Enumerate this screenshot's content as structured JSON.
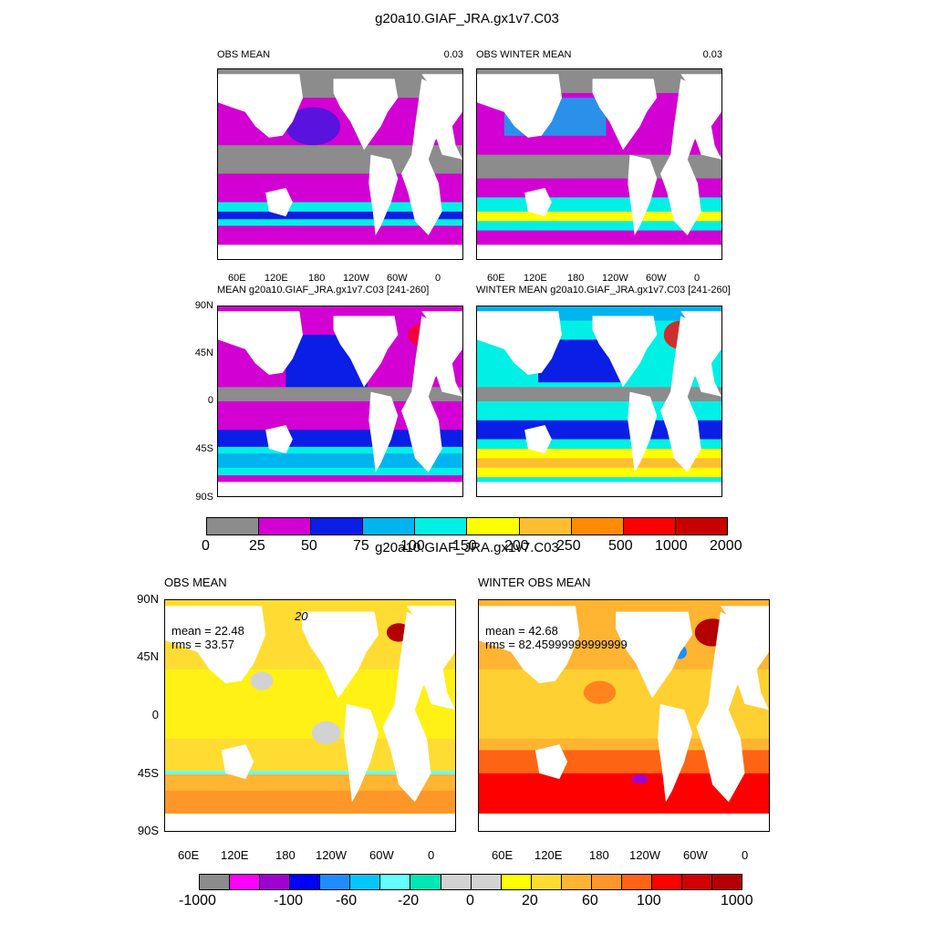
{
  "figure1": {
    "title": "g20a10.GIAF_JRA.gx1v7.C03",
    "panels": [
      {
        "left_title": "OBS MEAN",
        "right_title": "0.03"
      },
      {
        "left_title": "OBS WINTER MEAN",
        "right_title": "0.03"
      },
      {
        "left_title": "MEAN g20a10.GIAF_JRA.gx1v7.C03 [241-260]",
        "right_title": ""
      },
      {
        "left_title": "WINTER MEAN g20a10.GIAF_JRA.gx1v7.C03 [241-260]",
        "right_title": ""
      }
    ],
    "lon_labels": [
      "60E",
      "120E",
      "180",
      "120W",
      "60W",
      "0"
    ],
    "lat_labels": [
      "90N",
      "45N",
      "0",
      "45S",
      "90S"
    ],
    "colorbar": {
      "colors": [
        "#8c8c8c",
        "#d200d2",
        "#0a1ee6",
        "#00b4f0",
        "#00f0e6",
        "#ffff00",
        "#ffbe32",
        "#ff8c00",
        "#ff0000",
        "#c80000"
      ],
      "labels": [
        "0",
        "25",
        "50",
        "75",
        "100",
        "150",
        "200",
        "250",
        "500",
        "1000",
        "2000"
      ]
    }
  },
  "figure2": {
    "title": "g20a10.GIAF_JRA.gx1v7.C03",
    "panels": [
      {
        "left_title": "OBS MEAN",
        "stats_mean": "mean = 22.48",
        "stats_rms": "rms = 33.57",
        "contour_label": "20"
      },
      {
        "left_title": "WINTER OBS MEAN",
        "stats_mean": "mean = 42.68",
        "stats_rms": "rms = 82.45999999999999"
      }
    ],
    "lon_labels": [
      "60E",
      "120E",
      "180",
      "120W",
      "60W",
      "0"
    ],
    "lat_labels": [
      "90N",
      "45N",
      "0",
      "45S",
      "90S"
    ],
    "colorbar": {
      "colors": [
        "#8c8c8c",
        "#ff00ff",
        "#a000d2",
        "#0000ff",
        "#1e8cff",
        "#00c8ff",
        "#64ffff",
        "#00e6b4",
        "#d2d2d2",
        "#d2d2d2",
        "#ffff00",
        "#ffdc32",
        "#ffb432",
        "#ff9628",
        "#ff6414",
        "#ff0000",
        "#d20000",
        "#b40000"
      ],
      "labels": [
        "-1000",
        "-100",
        "-60",
        "-20",
        "0",
        "20",
        "60",
        "100",
        "1000"
      ]
    }
  }
}
